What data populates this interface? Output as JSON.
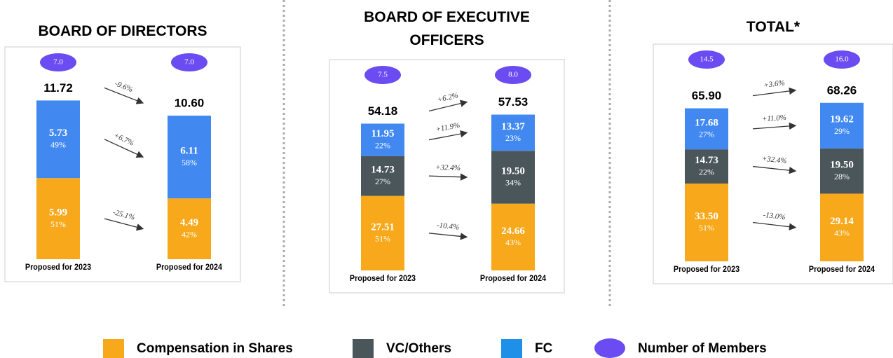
{
  "chart_data": [
    {
      "type": "bar",
      "stacked": true,
      "title": "BOARD OF DIRECTORS",
      "categories": [
        "Proposed for 2023",
        "Proposed for 2024"
      ],
      "ylim": [
        0,
        12
      ],
      "totals": [
        11.72,
        10.6
      ],
      "total_labels": [
        "11.72",
        "10.60"
      ],
      "total_change": -9.6,
      "total_change_label": "-9.6%",
      "members": [
        7.0,
        7.0
      ],
      "members_labels": [
        "7.0",
        "7.0"
      ],
      "series": [
        {
          "color": "#f7a81b",
          "values": [
            5.99,
            4.49
          ],
          "value_labels": [
            "5.99",
            "4.49"
          ],
          "percent_labels": [
            "51%",
            "42%"
          ],
          "change": -25.1,
          "change_label": "-25.1%"
        },
        {
          "color": "#4189f0",
          "values": [
            5.73,
            6.11
          ],
          "value_labels": [
            "5.73",
            "6.11"
          ],
          "percent_labels": [
            "49%",
            "58%"
          ],
          "change": 6.7,
          "change_label": "+6.7%"
        }
      ]
    },
    {
      "type": "bar",
      "stacked": true,
      "title": "BOARD OF EXECUTIVE OFFICERS",
      "categories": [
        "Proposed for 2023",
        "Proposed for 2024"
      ],
      "ylim": [
        0,
        60
      ],
      "totals": [
        54.18,
        57.53
      ],
      "total_labels": [
        "54.18",
        "57.53"
      ],
      "total_change": 6.2,
      "total_change_label": "+6.2%",
      "members": [
        7.5,
        8.0
      ],
      "members_labels": [
        "7.5",
        "8.0"
      ],
      "series": [
        {
          "color": "#f7a81b",
          "values": [
            27.51,
            24.66
          ],
          "value_labels": [
            "27.51",
            "24.66"
          ],
          "percent_labels": [
            "51%",
            "43%"
          ],
          "change": -10.4,
          "change_label": "-10.4%"
        },
        {
          "color": "#4b565b",
          "values": [
            14.73,
            19.5
          ],
          "value_labels": [
            "14.73",
            "19.50"
          ],
          "percent_labels": [
            "27%",
            "34%"
          ],
          "change": 32.4,
          "change_label": "+32.4%"
        },
        {
          "color": "#4189f0",
          "values": [
            11.95,
            13.37
          ],
          "value_labels": [
            "11.95",
            "13.37"
          ],
          "percent_labels": [
            "22%",
            "23%"
          ],
          "change": 11.9,
          "change_label": "+11.9%"
        }
      ]
    },
    {
      "type": "bar",
      "stacked": true,
      "title": "TOTAL*",
      "categories": [
        "Proposed for 2023",
        "Proposed for 2024"
      ],
      "ylim": [
        0,
        70
      ],
      "totals": [
        65.9,
        68.26
      ],
      "total_labels": [
        "65.90",
        "68.26"
      ],
      "total_change": 3.6,
      "total_change_label": "+3.6%",
      "members": [
        14.5,
        16.0
      ],
      "members_labels": [
        "14.5",
        "16.0"
      ],
      "series": [
        {
          "color": "#f7a81b",
          "values": [
            33.5,
            29.14
          ],
          "value_labels": [
            "33.50",
            "29.14"
          ],
          "percent_labels": [
            "51%",
            "43%"
          ],
          "change": -13.0,
          "change_label": "-13.0%"
        },
        {
          "color": "#4b565b",
          "values": [
            14.73,
            19.5
          ],
          "value_labels": [
            "14.73",
            "19.50"
          ],
          "percent_labels": [
            "22%",
            "28%"
          ],
          "change": 32.4,
          "change_label": "+32.4%"
        },
        {
          "color": "#4189f0",
          "values": [
            17.68,
            19.62
          ],
          "value_labels": [
            "17.68",
            "19.62"
          ],
          "percent_labels": [
            "27%",
            "29%"
          ],
          "change": 11.0,
          "change_label": "+11.0%"
        }
      ]
    }
  ],
  "legend": [
    {
      "name": "Compensation in Shares",
      "color": "#f7a81b"
    },
    {
      "name": "VC/Others",
      "color": "#4b565b"
    },
    {
      "name": "FC",
      "color": "#1e90e8"
    }
  ],
  "members_legend": {
    "name": "Number of Members",
    "color": "#6a4cf2"
  }
}
